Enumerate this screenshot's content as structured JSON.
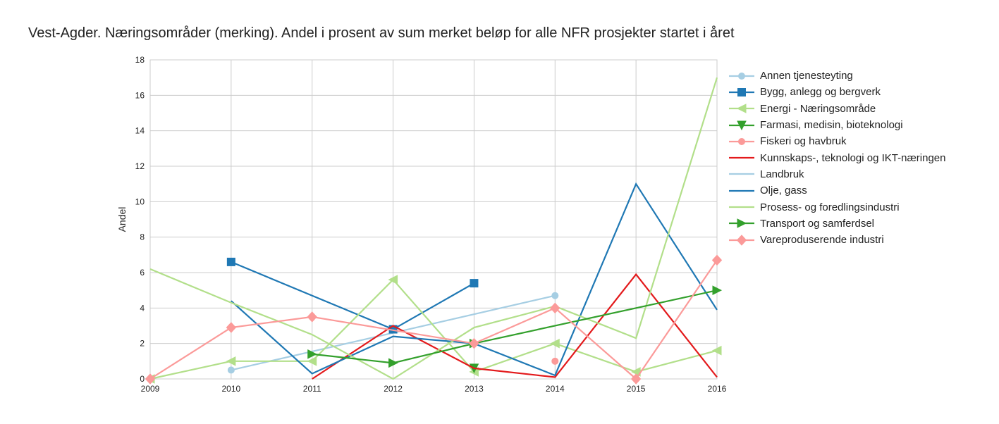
{
  "chart_data": {
    "type": "line",
    "title": "Vest-Agder. Næringsområder (merking). Andel i prosent av sum merket beløp for alle NFR prosjekter startet i året",
    "ylabel": "Andel",
    "xlabel": "",
    "xlim": [
      2009,
      2016
    ],
    "ylim": [
      0,
      18
    ],
    "x_ticks": [
      "2009",
      "2010",
      "2011",
      "2012",
      "2013",
      "2014",
      "2015",
      "2016"
    ],
    "y_ticks": [
      "0",
      "2",
      "4",
      "6",
      "8",
      "10",
      "12",
      "14",
      "16",
      "18"
    ],
    "grid": true,
    "legend_position": "right",
    "series": [
      {
        "name": "Annen tjenesteyting",
        "color": "#a6cee3",
        "marker": "circle",
        "points": [
          [
            2010,
            0.5
          ],
          [
            2014,
            4.7
          ]
        ]
      },
      {
        "name": "Bygg, anlegg og bergverk",
        "color": "#1f78b4",
        "marker": "square",
        "points": [
          [
            2010,
            6.6
          ],
          [
            2012,
            2.8
          ],
          [
            2013,
            5.4
          ]
        ]
      },
      {
        "name": "Energi - Næringsområde",
        "color": "#b2df8a",
        "marker": "triangle-left",
        "points": [
          [
            2009,
            0.0
          ],
          [
            2010,
            1.0
          ],
          [
            2011,
            1.0
          ],
          [
            2012,
            5.6
          ],
          [
            2013,
            0.4
          ],
          [
            2014,
            2.0
          ],
          [
            2015,
            0.4
          ],
          [
            2016,
            1.6
          ]
        ]
      },
      {
        "name": "Farmasi, medisin, bioteknologi",
        "color": "#33a02c",
        "marker": "triangle-down",
        "points": [
          [
            2013,
            0.6
          ]
        ]
      },
      {
        "name": "Fiskeri og havbruk",
        "color": "#fb9a99",
        "marker": "circle",
        "points": [
          [
            2014,
            1.0
          ]
        ]
      },
      {
        "name": "Kunnskaps-, teknologi og IKT-næringen",
        "color": "#e31a1c",
        "marker": "none",
        "points": [
          [
            2011,
            0.0
          ],
          [
            2012,
            3.0
          ],
          [
            2013,
            0.6
          ],
          [
            2014,
            0.1
          ],
          [
            2015,
            5.9
          ],
          [
            2016,
            0.1
          ]
        ]
      },
      {
        "name": "Landbruk",
        "color": "#a6cee3",
        "marker": "none",
        "points": []
      },
      {
        "name": "Olje, gass",
        "color": "#1f78b4",
        "marker": "none",
        "points": [
          [
            2010,
            4.4
          ],
          [
            2011,
            0.3
          ],
          [
            2012,
            2.4
          ],
          [
            2013,
            2.0
          ],
          [
            2014,
            0.2
          ],
          [
            2015,
            11.0
          ],
          [
            2016,
            3.9
          ]
        ]
      },
      {
        "name": "Prosess- og foredlingsindustri",
        "color": "#b2df8a",
        "marker": "none",
        "points": [
          [
            2009,
            6.2
          ],
          [
            2010,
            4.3
          ],
          [
            2011,
            2.5
          ],
          [
            2012,
            0.0
          ],
          [
            2013,
            2.9
          ],
          [
            2014,
            4.1
          ],
          [
            2015,
            2.3
          ],
          [
            2016,
            17.0
          ]
        ]
      },
      {
        "name": "Transport og samferdsel",
        "color": "#33a02c",
        "marker": "triangle-right",
        "points": [
          [
            2011,
            1.4
          ],
          [
            2012,
            0.9
          ],
          [
            2013,
            2.0
          ],
          [
            2016,
            5.0
          ]
        ]
      },
      {
        "name": "Vareproduserende industri",
        "color": "#fb9a99",
        "marker": "diamond",
        "points": [
          [
            2009,
            0.0
          ],
          [
            2010,
            2.9
          ],
          [
            2011,
            3.5
          ],
          [
            2013,
            2.0
          ],
          [
            2014,
            4.0
          ],
          [
            2015,
            0.0
          ],
          [
            2016,
            6.7
          ]
        ]
      }
    ]
  }
}
